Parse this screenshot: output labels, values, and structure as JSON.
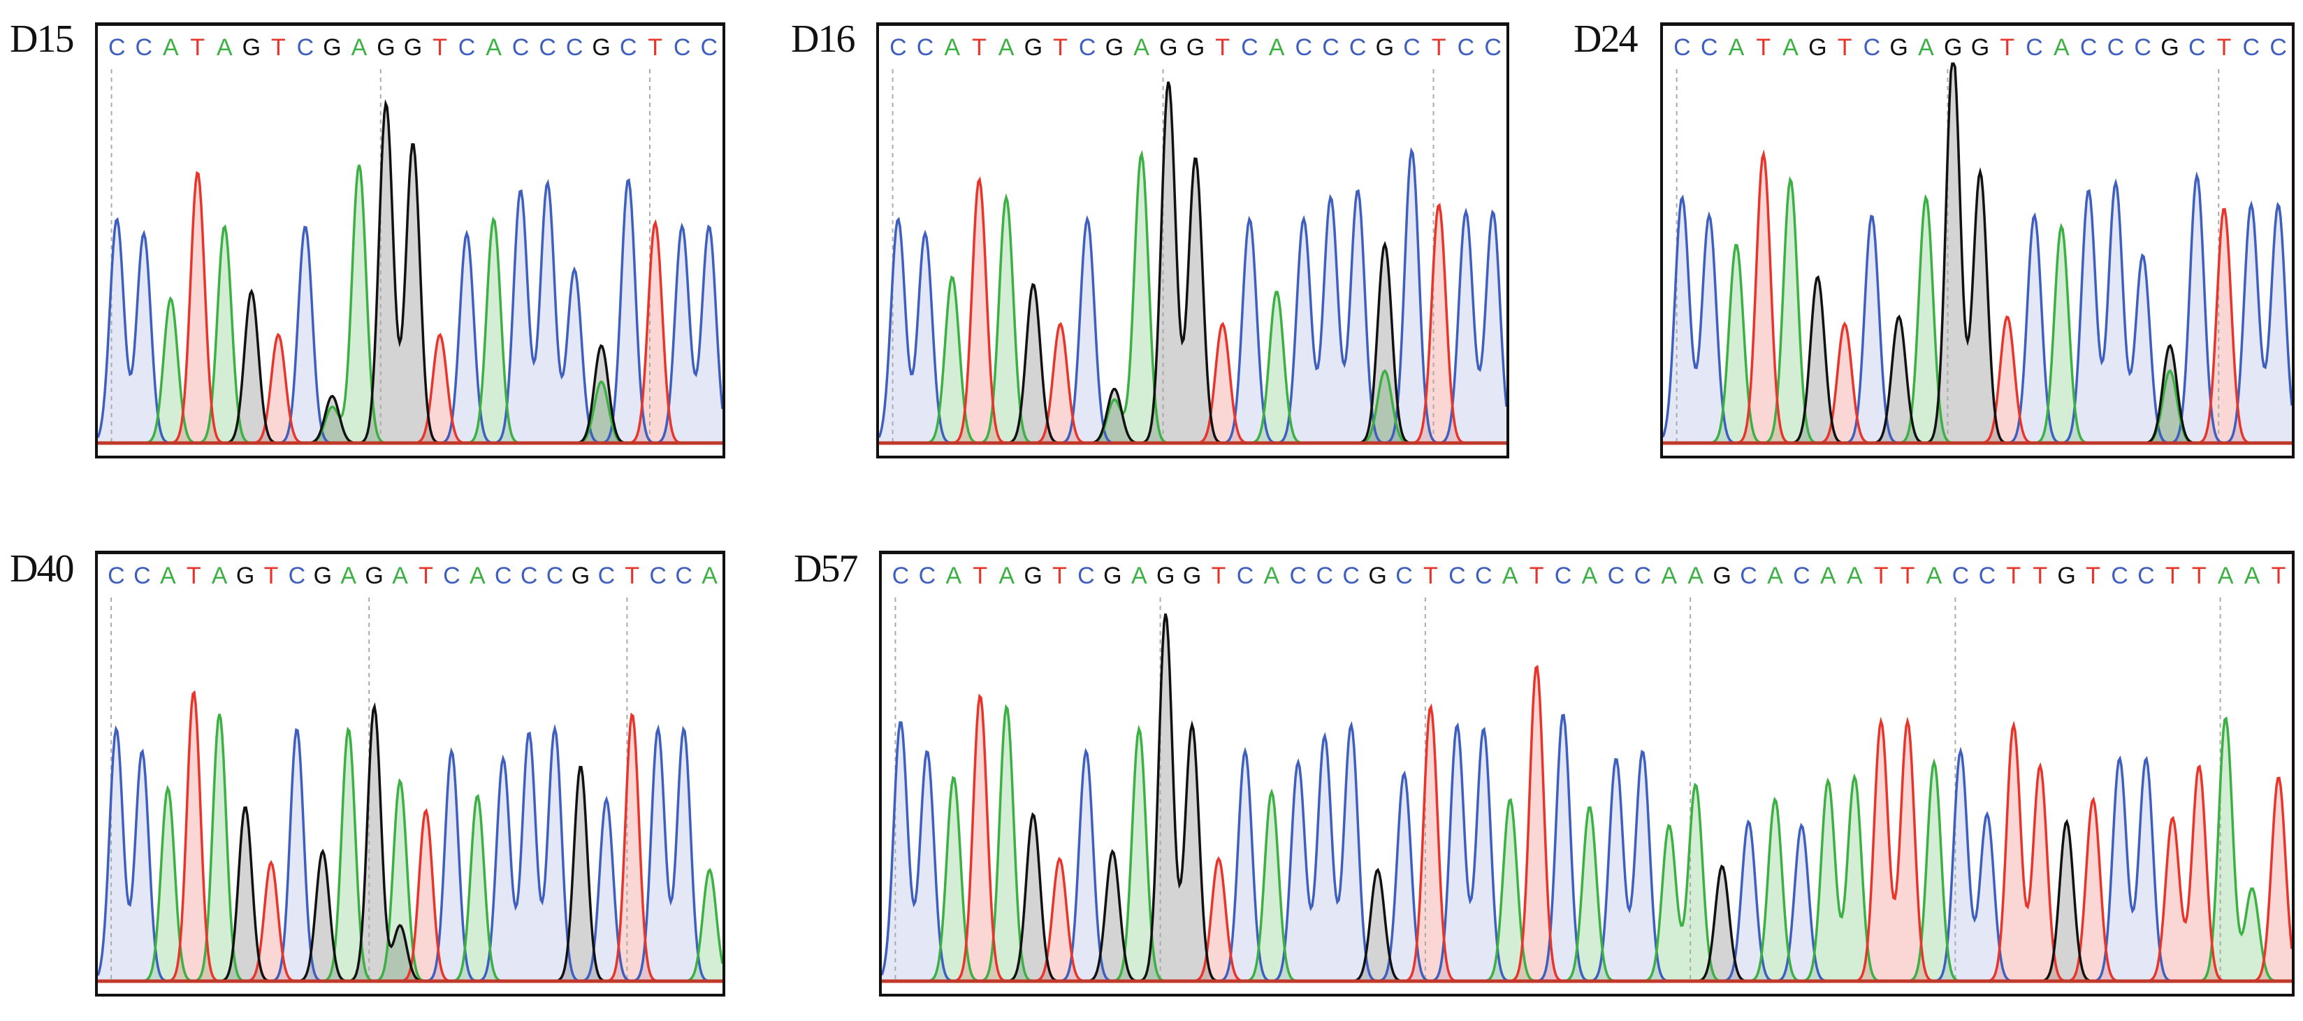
{
  "colors": {
    "A": "#3cb043",
    "C": "#3f5fbf",
    "G": "#111111",
    "T": "#e8352b",
    "baseline": "#c0392b"
  },
  "chart_data": [
    {
      "type": "line",
      "title": "D15",
      "sequence": "CCATAGTCGAGGTCACCCGCTCC",
      "peaks": [
        0.62,
        0.58,
        0.4,
        0.75,
        0.6,
        0.42,
        0.3,
        0.6,
        0.13,
        0.77,
        0.47,
        0.83,
        0.3,
        0.58,
        0.62,
        0.7,
        0.72,
        0.48,
        0.27,
        0.73,
        0.61,
        0.6,
        0.6
      ],
      "secondary": [
        {
          "index": 8,
          "base": "A",
          "value": 0.1
        },
        {
          "index": 10,
          "base": "G",
          "value": 0.47
        },
        {
          "index": 18,
          "base": "A",
          "value": 0.17
        }
      ],
      "ylim": [
        0,
        1
      ]
    },
    {
      "type": "line",
      "title": "D16",
      "sequence": "CCATAGTCGAGGTCACCCGCTCC",
      "peaks": [
        0.62,
        0.58,
        0.46,
        0.73,
        0.68,
        0.44,
        0.33,
        0.62,
        0.15,
        0.8,
        0.5,
        0.79,
        0.33,
        0.62,
        0.42,
        0.62,
        0.68,
        0.7,
        0.55,
        0.81,
        0.66,
        0.64,
        0.64
      ],
      "secondary": [
        {
          "index": 8,
          "base": "A",
          "value": 0.12
        },
        {
          "index": 10,
          "base": "G",
          "value": 0.5
        },
        {
          "index": 18,
          "base": "A",
          "value": 0.2
        }
      ],
      "ylim": [
        0,
        1
      ]
    },
    {
      "type": "line",
      "title": "D24",
      "sequence": "CCATAGTCGAGGTCACCCGCTCC",
      "peaks": [
        0.68,
        0.63,
        0.55,
        0.8,
        0.73,
        0.46,
        0.33,
        0.63,
        0.35,
        0.68,
        0.54,
        0.75,
        0.35,
        0.63,
        0.6,
        0.7,
        0.72,
        0.52,
        0.27,
        0.74,
        0.65,
        0.66,
        0.66
      ],
      "secondary": [
        {
          "index": 10,
          "base": "G",
          "value": 0.54
        },
        {
          "index": 18,
          "base": "A",
          "value": 0.2
        }
      ],
      "ylim": [
        0,
        1
      ]
    },
    {
      "type": "line",
      "title": "D40",
      "sequence": "CCATAGTCGAGATCACCCGCTCCA",
      "peaks": [
        0.68,
        0.62,
        0.52,
        0.78,
        0.72,
        0.47,
        0.32,
        0.68,
        0.35,
        0.68,
        0.46,
        0.54,
        0.46,
        0.62,
        0.5,
        0.6,
        0.67,
        0.68,
        0.58,
        0.49,
        0.72,
        0.68,
        0.68,
        0.3
      ],
      "secondary": [
        {
          "index": 10,
          "base": "G",
          "value": 0.28
        },
        {
          "index": 11,
          "base": "G",
          "value": 0.15
        }
      ],
      "ylim": [
        0,
        1
      ]
    },
    {
      "type": "line",
      "title": "D57",
      "sequence": "CCATAGTCGAGGTCACCCGCTCCATCACCAAGCACAATTACCTTGTCCTTAAT",
      "peaks": [
        0.7,
        0.62,
        0.55,
        0.77,
        0.74,
        0.45,
        0.33,
        0.62,
        0.35,
        0.68,
        0.5,
        0.69,
        0.33,
        0.62,
        0.51,
        0.59,
        0.66,
        0.69,
        0.3,
        0.56,
        0.74,
        0.69,
        0.68,
        0.49,
        0.85,
        0.72,
        0.47,
        0.6,
        0.62,
        0.42,
        0.43,
        0.31,
        0.43,
        0.49,
        0.42,
        0.54,
        0.55,
        0.7,
        0.7,
        0.59,
        0.62,
        0.45,
        0.69,
        0.58,
        0.43,
        0.49,
        0.6,
        0.6,
        0.44,
        0.58,
        0.71,
        0.25,
        0.55
      ],
      "secondary": [
        {
          "index": 10,
          "base": "G",
          "value": 0.49
        },
        {
          "index": 30,
          "base": "A",
          "value": 0.1
        }
      ],
      "ylim": [
        0,
        1
      ]
    }
  ]
}
